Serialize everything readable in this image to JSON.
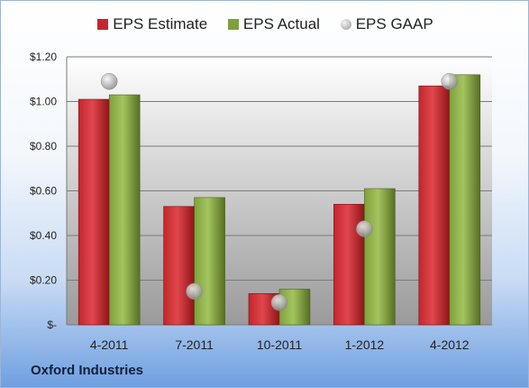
{
  "company": "Oxford Industries",
  "colors": {
    "estimate": "#c3262c",
    "actual": "#7fa13c",
    "gaap": "#b7b7b7"
  },
  "legend": {
    "estimate_label": "EPS Estimate",
    "actual_label": "EPS Actual",
    "gaap_label": "EPS GAAP"
  },
  "chart_data": {
    "type": "bar",
    "categories": [
      "4-2011",
      "7-2011",
      "10-2011",
      "1-2012",
      "4-2012"
    ],
    "series": [
      {
        "name": "EPS Estimate",
        "type": "bar",
        "values": [
          1.01,
          0.53,
          0.14,
          0.54,
          1.07
        ]
      },
      {
        "name": "EPS Actual",
        "type": "bar",
        "values": [
          1.03,
          0.57,
          0.16,
          0.61,
          1.12
        ]
      },
      {
        "name": "EPS GAAP",
        "type": "scatter",
        "values": [
          1.09,
          0.15,
          0.1,
          0.43,
          1.09
        ]
      }
    ],
    "ylim": [
      0,
      1.2
    ],
    "yticks": [
      0,
      0.2,
      0.4,
      0.6,
      0.8,
      1.0,
      1.2
    ],
    "ytick_labels": [
      "$-",
      "$0.20",
      "$0.40",
      "$0.60",
      "$0.80",
      "$1.00",
      "$1.20"
    ],
    "grid": true,
    "legend_position": "top-center"
  }
}
